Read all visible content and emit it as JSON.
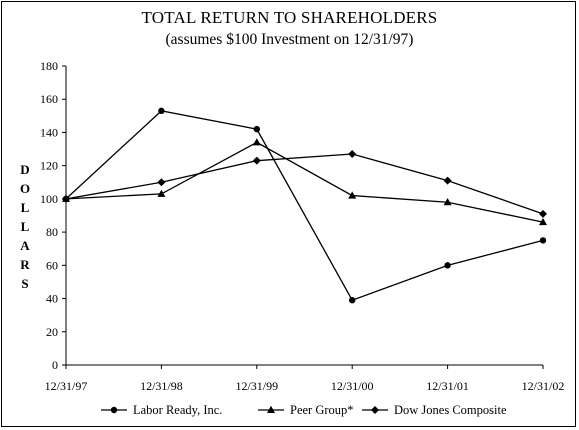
{
  "chart_data": {
    "type": "line",
    "title": "TOTAL RETURN TO SHAREHOLDERS",
    "subtitle": "(assumes $100 Investment on 12/31/97)",
    "ylabel": "DOLLARS",
    "xlabel": "",
    "categories": [
      "12/31/97",
      "12/31/98",
      "12/31/99",
      "12/31/00",
      "12/31/01",
      "12/31/02"
    ],
    "ylim": [
      0,
      180
    ],
    "yticks": [
      0,
      20,
      40,
      60,
      80,
      100,
      120,
      140,
      160,
      180
    ],
    "grid": false,
    "legend_position": "bottom",
    "series": [
      {
        "name": "Labor Ready, Inc.",
        "marker": "circle",
        "values": [
          100,
          153,
          142,
          39,
          60,
          75
        ]
      },
      {
        "name": "Peer Group*",
        "marker": "triangle",
        "values": [
          100,
          103,
          134,
          102,
          98,
          86
        ]
      },
      {
        "name": "Dow Jones Composite",
        "marker": "diamond",
        "values": [
          100,
          110,
          123,
          127,
          111,
          91
        ]
      }
    ]
  }
}
